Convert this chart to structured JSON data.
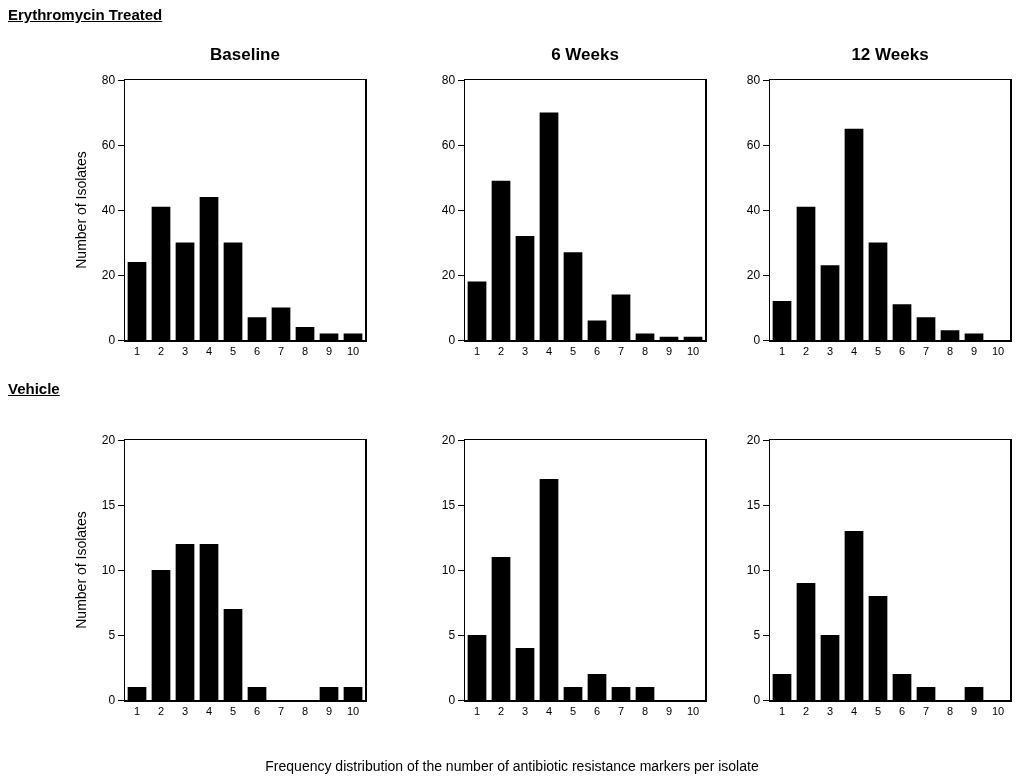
{
  "chart_data": [
    {
      "type": "bar",
      "title": "Baseline",
      "ylabel": "Number of Isolates",
      "annotations": [
        "Erythromycin Treated"
      ],
      "categories": [
        "1",
        "2",
        "3",
        "4",
        "5",
        "6",
        "7",
        "8",
        "9",
        "10"
      ],
      "values": [
        24,
        41,
        30,
        44,
        30,
        7,
        10,
        4,
        2,
        2
      ],
      "color": "#000000",
      "ylim": [
        0,
        80
      ],
      "yticks": [
        0,
        20,
        40,
        60,
        80
      ],
      "grid": false
    },
    {
      "type": "bar",
      "title": "6 Weeks",
      "categories": [
        "1",
        "2",
        "3",
        "4",
        "5",
        "6",
        "7",
        "8",
        "9",
        "10"
      ],
      "values": [
        18,
        49,
        32,
        70,
        27,
        6,
        14,
        2,
        1,
        1
      ],
      "color": "#000000",
      "ylim": [
        0,
        80
      ],
      "yticks": [
        0,
        20,
        40,
        60,
        80
      ],
      "grid": false
    },
    {
      "type": "bar",
      "title": "12 Weeks",
      "categories": [
        "1",
        "2",
        "3",
        "4",
        "5",
        "6",
        "7",
        "8",
        "9",
        "10"
      ],
      "values": [
        12,
        41,
        23,
        65,
        30,
        11,
        7,
        3,
        2,
        0
      ],
      "color": "#000000",
      "ylim": [
        0,
        80
      ],
      "yticks": [
        0,
        20,
        40,
        60,
        80
      ],
      "grid": false
    },
    {
      "type": "bar",
      "ylabel": "Number of Isolates",
      "annotations": [
        "Vehicle"
      ],
      "categories": [
        "1",
        "2",
        "3",
        "4",
        "5",
        "6",
        "7",
        "8",
        "9",
        "10"
      ],
      "values": [
        1,
        10,
        12,
        12,
        7,
        1,
        0,
        0,
        1,
        1
      ],
      "color": "#000000",
      "ylim": [
        0,
        20
      ],
      "yticks": [
        0,
        5,
        10,
        15,
        20
      ],
      "grid": false
    },
    {
      "type": "bar",
      "annotations": [
        "Frequency distribution of the number of antibiotic resistance markers per isolate"
      ],
      "categories": [
        "1",
        "2",
        "3",
        "4",
        "5",
        "6",
        "7",
        "8",
        "9",
        "10"
      ],
      "values": [
        5,
        11,
        4,
        17,
        1,
        2,
        1,
        1,
        0,
        0
      ],
      "color": "#000000",
      "ylim": [
        0,
        20
      ],
      "yticks": [
        0,
        5,
        10,
        15,
        20
      ],
      "grid": false
    },
    {
      "type": "bar",
      "categories": [
        "1",
        "2",
        "3",
        "4",
        "5",
        "6",
        "7",
        "8",
        "9",
        "10"
      ],
      "values": [
        2,
        9,
        5,
        13,
        8,
        2,
        1,
        0,
        1,
        0
      ],
      "color": "#000000",
      "ylim": [
        0,
        20
      ],
      "yticks": [
        0,
        5,
        10,
        15,
        20
      ],
      "grid": false
    }
  ]
}
